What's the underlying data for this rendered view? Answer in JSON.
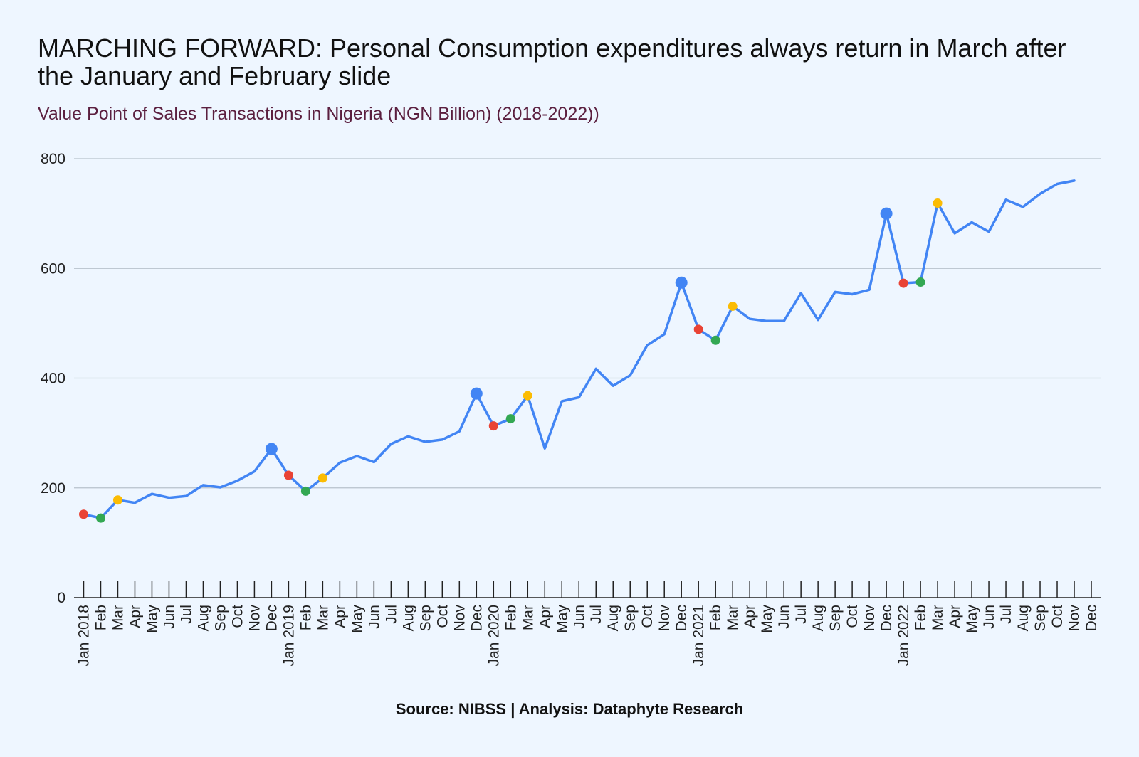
{
  "chart_data": {
    "type": "line",
    "title": "MARCHING FORWARD: Personal Consumption expenditures always return in March after the January and February slide",
    "subtitle": "Value Point of Sales Transactions in Nigeria (NGN Billion) (2018-2022))",
    "source": "Source: NIBSS | Analysis: Dataphyte Research",
    "xlabel": "",
    "ylabel": "",
    "ylim": [
      0,
      800
    ],
    "yticks": [
      "0",
      "200",
      "400",
      "600",
      "800"
    ],
    "grid": true,
    "x": [
      "Jan 2018",
      "Feb",
      "Mar",
      "Apr",
      "May",
      "Jun",
      "Jul",
      "Aug",
      "Sep",
      "Oct",
      "Nov",
      "Dec",
      "Jan 2019",
      "Feb",
      "Mar",
      "Apr",
      "May",
      "Jun",
      "Jul",
      "Aug",
      "Sep",
      "Oct",
      "Nov",
      "Dec",
      "Jan 2020",
      "Feb",
      "Mar",
      "Apr",
      "May",
      "Jun",
      "Jul",
      "Aug",
      "Sep",
      "Oct",
      "Nov",
      "Dec",
      "Jan 2021",
      "Feb",
      "Mar",
      "Apr",
      "May",
      "Jun",
      "Jul",
      "Aug",
      "Sep",
      "Oct",
      "Nov",
      "Dec",
      "Jan 2022",
      "Feb",
      "Mar",
      "Apr",
      "May",
      "Jun",
      "Jul",
      "Aug",
      "Sep",
      "Oct",
      "Nov",
      "Dec"
    ],
    "series": [
      {
        "values": [
          152,
          145,
          178,
          173,
          189,
          182,
          185,
          205,
          201,
          213,
          230,
          271,
          223,
          194,
          218,
          246,
          258,
          247,
          280,
          294,
          284,
          288,
          303,
          372,
          313,
          326,
          368,
          272,
          358,
          365,
          417,
          386,
          405,
          460,
          480,
          574,
          489,
          469,
          531,
          508,
          504,
          504,
          555,
          506,
          557,
          553,
          561,
          700,
          573,
          575,
          719,
          664,
          684,
          667,
          725,
          712,
          736,
          754,
          760,
          null
        ]
      }
    ],
    "highlight_markers": [
      {
        "x": "Jan 2018",
        "y": 152,
        "color": "#e94335"
      },
      {
        "x": "Feb 2018",
        "y": 145,
        "color": "#33a853"
      },
      {
        "x": "Mar 2018",
        "y": 178,
        "color": "#fbbc04"
      },
      {
        "x": "Dec 2018",
        "y": 271,
        "color": "#4285f4"
      },
      {
        "x": "Jan 2019",
        "y": 223,
        "color": "#e94335"
      },
      {
        "x": "Feb 2019",
        "y": 194,
        "color": "#33a853"
      },
      {
        "x": "Mar 2019",
        "y": 218,
        "color": "#fbbc04"
      },
      {
        "x": "Dec 2019",
        "y": 372,
        "color": "#4285f4"
      },
      {
        "x": "Jan 2020",
        "y": 313,
        "color": "#e94335"
      },
      {
        "x": "Feb 2020",
        "y": 326,
        "color": "#33a853"
      },
      {
        "x": "Mar 2020",
        "y": 368,
        "color": "#fbbc04"
      },
      {
        "x": "Dec 2020",
        "y": 574,
        "color": "#4285f4"
      },
      {
        "x": "Jan 2021",
        "y": 489,
        "color": "#e94335"
      },
      {
        "x": "Feb 2021",
        "y": 469,
        "color": "#33a853"
      },
      {
        "x": "Mar 2021",
        "y": 531,
        "color": "#fbbc04"
      },
      {
        "x": "Dec 2021",
        "y": 700,
        "color": "#4285f4"
      },
      {
        "x": "Jan 2022",
        "y": 573,
        "color": "#e94335"
      },
      {
        "x": "Feb 2022",
        "y": 575,
        "color": "#33a853"
      },
      {
        "x": "Mar 2022",
        "y": 719,
        "color": "#fbbc04"
      }
    ],
    "colors": {
      "line": "#4285f4",
      "grid": "#b7c2cc",
      "axis": "#222222",
      "background": "#eef6ff"
    }
  }
}
